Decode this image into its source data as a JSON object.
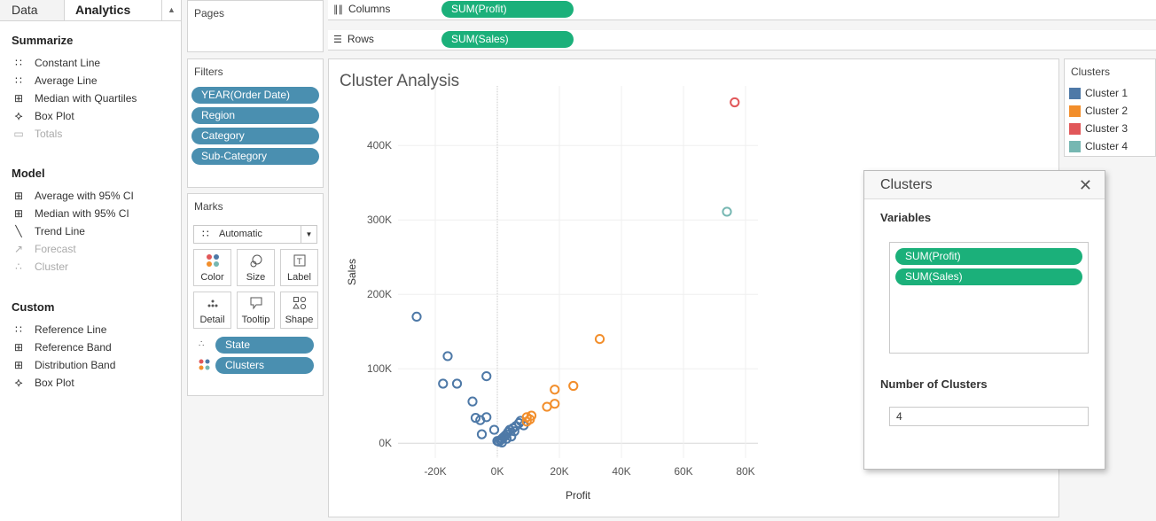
{
  "left_pane": {
    "tab_data": "Data",
    "tab_analytics": "Analytics",
    "sections": [
      {
        "title": "Summarize",
        "items": [
          {
            "label": "Constant Line",
            "icon": "constant-line-icon",
            "enabled": true
          },
          {
            "label": "Average Line",
            "icon": "average-line-icon",
            "enabled": true
          },
          {
            "label": "Median with Quartiles",
            "icon": "median-quartiles-icon",
            "enabled": true
          },
          {
            "label": "Box Plot",
            "icon": "box-plot-icon",
            "enabled": true
          },
          {
            "label": "Totals",
            "icon": "totals-icon",
            "enabled": false
          }
        ]
      },
      {
        "title": "Model",
        "items": [
          {
            "label": "Average with 95% CI",
            "icon": "average-ci-icon",
            "enabled": true
          },
          {
            "label": "Median with 95% CI",
            "icon": "median-ci-icon",
            "enabled": true
          },
          {
            "label": "Trend Line",
            "icon": "trend-line-icon",
            "enabled": true
          },
          {
            "label": "Forecast",
            "icon": "forecast-icon",
            "enabled": false
          },
          {
            "label": "Cluster",
            "icon": "cluster-icon",
            "enabled": false
          }
        ]
      },
      {
        "title": "Custom",
        "items": [
          {
            "label": "Reference Line",
            "icon": "reference-line-icon",
            "enabled": true
          },
          {
            "label": "Reference Band",
            "icon": "reference-band-icon",
            "enabled": true
          },
          {
            "label": "Distribution Band",
            "icon": "distribution-band-icon",
            "enabled": true
          },
          {
            "label": "Box Plot",
            "icon": "box-plot-icon",
            "enabled": true
          }
        ]
      }
    ]
  },
  "pages": {
    "title": "Pages"
  },
  "filters": {
    "title": "Filters",
    "pills": [
      "YEAR(Order Date)",
      "Region",
      "Category",
      "Sub-Category"
    ]
  },
  "marks": {
    "title": "Marks",
    "type": "Automatic",
    "buttons": [
      "Color",
      "Size",
      "Label",
      "Detail",
      "Tooltip",
      "Shape"
    ],
    "fields": [
      "State",
      "Clusters"
    ]
  },
  "shelves": {
    "columns_label": "Columns",
    "columns_pill": "SUM(Profit)",
    "rows_label": "Rows",
    "rows_pill": "SUM(Sales)"
  },
  "view": {
    "title": "Cluster Analysis"
  },
  "legend": {
    "title": "Clusters",
    "items": [
      {
        "label": "Cluster 1",
        "color": "#4e79a7"
      },
      {
        "label": "Cluster 2",
        "color": "#f28e2b"
      },
      {
        "label": "Cluster 3",
        "color": "#e15759"
      },
      {
        "label": "Cluster 4",
        "color": "#76b7b2"
      }
    ]
  },
  "dialog": {
    "title": "Clusters",
    "variables_label": "Variables",
    "variables": [
      "SUM(Profit)",
      "SUM(Sales)"
    ],
    "num_clusters_label": "Number of Clusters",
    "num_clusters_value": "4"
  },
  "chart_data": {
    "type": "scatter",
    "title": "Cluster Analysis",
    "xlabel": "Profit",
    "ylabel": "Sales",
    "xlim": [
      -32000,
      84000
    ],
    "ylim": [
      -20000,
      480000
    ],
    "xticks": [
      -20000,
      0,
      20000,
      40000,
      60000,
      80000
    ],
    "xtick_labels": [
      "-20K",
      "0K",
      "20K",
      "40K",
      "60K",
      "80K"
    ],
    "yticks": [
      0,
      100000,
      200000,
      300000,
      400000
    ],
    "ytick_labels": [
      "0K",
      "100K",
      "200K",
      "300K",
      "400K"
    ],
    "grid": true,
    "series": [
      {
        "name": "Cluster 1",
        "color": "#4e79a7",
        "points": [
          [
            -26000,
            170000
          ],
          [
            -16000,
            117000
          ],
          [
            -17500,
            80000
          ],
          [
            -13000,
            80000
          ],
          [
            -3500,
            90000
          ],
          [
            -8000,
            56000
          ],
          [
            -7000,
            34000
          ],
          [
            -5500,
            31000
          ],
          [
            -3500,
            35000
          ],
          [
            -1000,
            18000
          ],
          [
            -5000,
            12000
          ],
          [
            0,
            3000
          ],
          [
            500,
            2000
          ],
          [
            1000,
            4000
          ],
          [
            1500,
            6000
          ],
          [
            2000,
            8000
          ],
          [
            2500,
            10000
          ],
          [
            3000,
            12000
          ],
          [
            3500,
            15000
          ],
          [
            4000,
            18000
          ],
          [
            5000,
            20000
          ],
          [
            6000,
            23000
          ],
          [
            7000,
            27000
          ],
          [
            7500,
            30000
          ],
          [
            8500,
            24000
          ],
          [
            1500,
            1000
          ],
          [
            3000,
            6000
          ],
          [
            4500,
            9000
          ],
          [
            5500,
            16000
          ]
        ]
      },
      {
        "name": "Cluster 2",
        "color": "#f28e2b",
        "points": [
          [
            33000,
            140000
          ],
          [
            24500,
            77000
          ],
          [
            18500,
            72000
          ],
          [
            18500,
            53000
          ],
          [
            16000,
            49000
          ],
          [
            11000,
            37000
          ],
          [
            9500,
            35000
          ],
          [
            10500,
            32000
          ],
          [
            9500,
            29000
          ]
        ]
      },
      {
        "name": "Cluster 3",
        "color": "#e15759",
        "points": [
          [
            76500,
            458000
          ]
        ]
      },
      {
        "name": "Cluster 4",
        "color": "#76b7b2",
        "points": [
          [
            74000,
            311000
          ]
        ]
      }
    ]
  }
}
